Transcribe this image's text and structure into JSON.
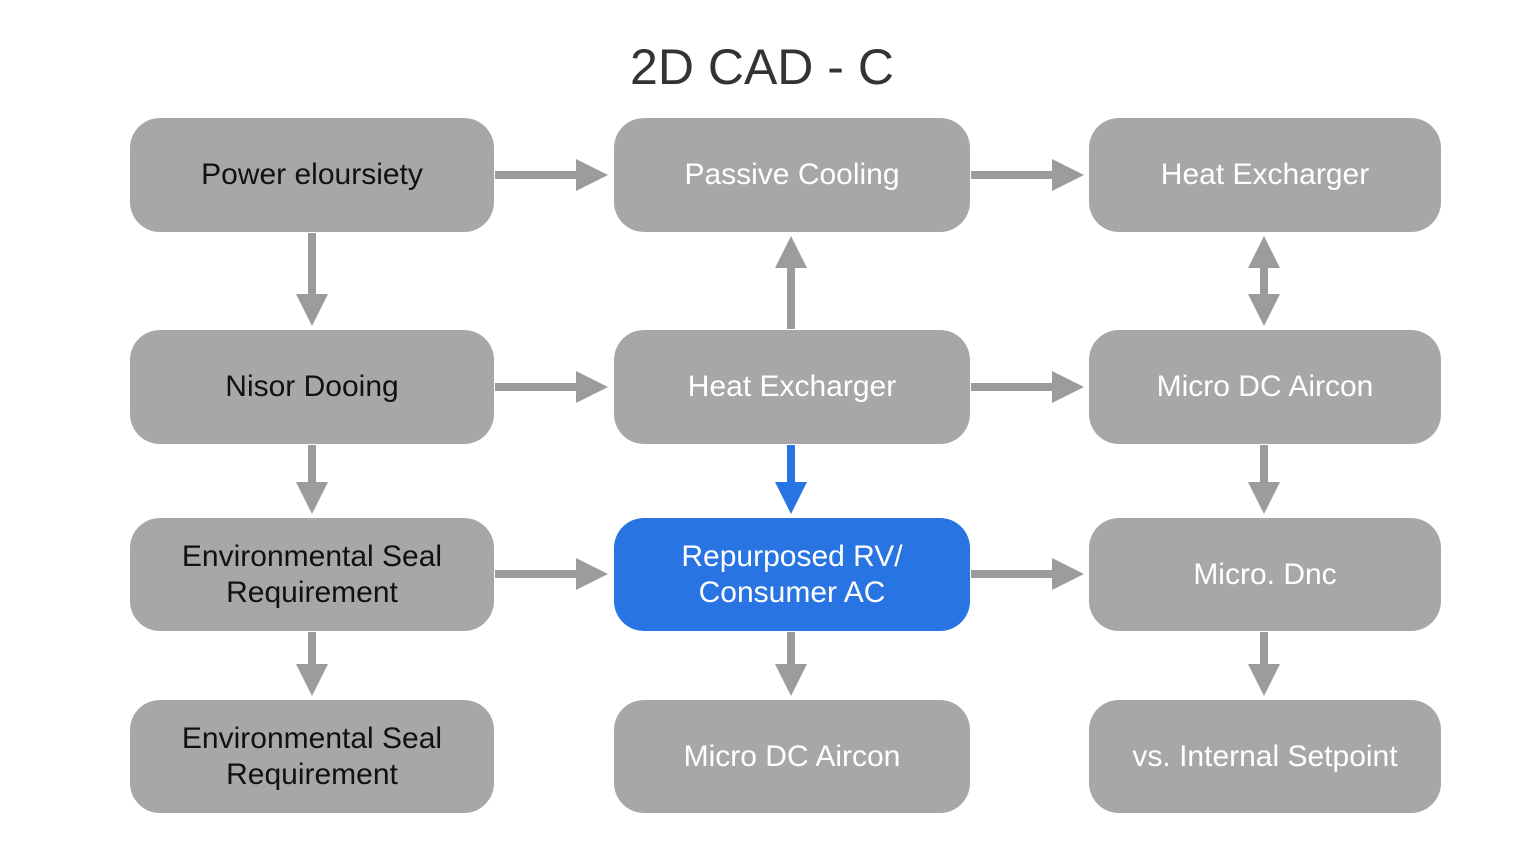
{
  "title": "2D CAD - C",
  "colors": {
    "node": "#a7a7a7",
    "highlight": "#2874e2",
    "arrow": "#9c9c9c",
    "highlight_arrow": "#2874e2"
  },
  "nodes": [
    {
      "label": "Power eloursiety"
    },
    {
      "label": "Passive Cooling"
    },
    {
      "label": "Heat Excharger"
    },
    {
      "label": "Nisor Dooing"
    },
    {
      "label": "Heat Excharger"
    },
    {
      "label": "Micro DC Aircon"
    },
    {
      "label": "Environmental Seal\nRequirement"
    },
    {
      "label": "Repurposed RV/\nConsumer AC"
    },
    {
      "label": "Micro. Dnc"
    },
    {
      "label": "Environmental Seal\nRequirement"
    },
    {
      "label": "Micro DC Aircon"
    },
    {
      "label": "vs. Internal Setpoint"
    }
  ]
}
